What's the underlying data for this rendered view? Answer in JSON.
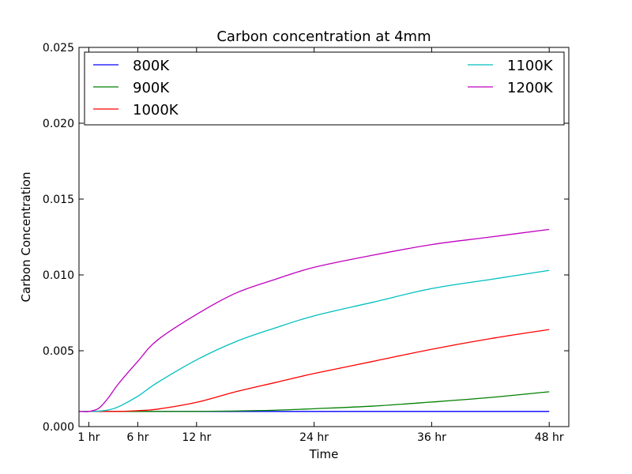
{
  "chart_data": {
    "type": "line",
    "title": "Carbon concentration at 4mm",
    "xlabel": "Time",
    "ylabel": "Carbon Concentration",
    "xlim": [
      0,
      50
    ],
    "ylim": [
      0,
      0.025
    ],
    "x_ticks": [
      {
        "value": 1,
        "label": "1 hr"
      },
      {
        "value": 6,
        "label": "6 hr"
      },
      {
        "value": 12,
        "label": "12 hr"
      },
      {
        "value": 24,
        "label": "24 hr"
      },
      {
        "value": 36,
        "label": "36 hr"
      },
      {
        "value": 48,
        "label": "48 hr"
      }
    ],
    "y_ticks": [
      {
        "value": 0.0,
        "label": "0.000"
      },
      {
        "value": 0.005,
        "label": "0.005"
      },
      {
        "value": 0.01,
        "label": "0.010"
      },
      {
        "value": 0.015,
        "label": "0.015"
      },
      {
        "value": 0.02,
        "label": "0.020"
      },
      {
        "value": 0.025,
        "label": "0.025"
      }
    ],
    "grid": false,
    "legend": "top",
    "x": [
      0,
      1,
      2,
      3,
      4,
      6,
      8,
      12,
      16,
      20,
      24,
      30,
      36,
      42,
      48
    ],
    "series": [
      {
        "name": "800K",
        "color": "#0000ff",
        "values": [
          0.001,
          0.001,
          0.001,
          0.001,
          0.001,
          0.001,
          0.001,
          0.001,
          0.001,
          0.001,
          0.001,
          0.001,
          0.001,
          0.001,
          0.001
        ]
      },
      {
        "name": "900K",
        "color": "#008000",
        "values": [
          0.001,
          0.001,
          0.001,
          0.001,
          0.001,
          0.001,
          0.001,
          0.001,
          0.00103,
          0.00108,
          0.00118,
          0.00135,
          0.00162,
          0.00192,
          0.0023
        ]
      },
      {
        "name": "1000K",
        "color": "#ff0000",
        "values": [
          0.001,
          0.001,
          0.001,
          0.001,
          0.001,
          0.00105,
          0.00115,
          0.0016,
          0.0023,
          0.0029,
          0.0035,
          0.0043,
          0.0051,
          0.0058,
          0.0064
        ]
      },
      {
        "name": "1100K",
        "color": "#00bfbf",
        "values": [
          0.001,
          0.001,
          0.00102,
          0.0011,
          0.0013,
          0.002,
          0.0029,
          0.0044,
          0.0056,
          0.0065,
          0.0073,
          0.0082,
          0.0091,
          0.0097,
          0.0103
        ]
      },
      {
        "name": "1200K",
        "color": "#bf00bf",
        "values": [
          0.001,
          0.001,
          0.0012,
          0.0019,
          0.0028,
          0.0043,
          0.0057,
          0.0074,
          0.0088,
          0.0097,
          0.0105,
          0.0113,
          0.012,
          0.0125,
          0.013
        ]
      }
    ]
  }
}
